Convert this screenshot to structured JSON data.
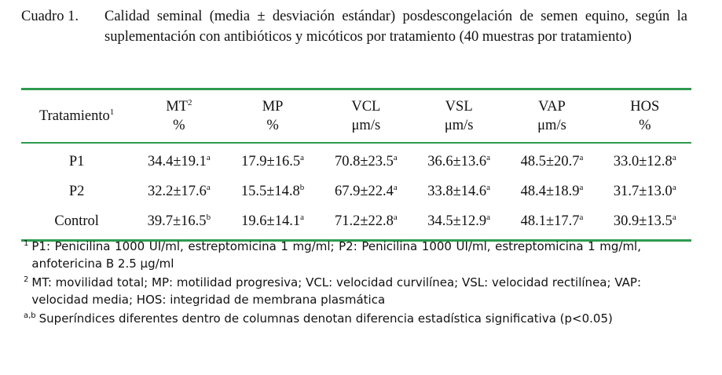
{
  "caption": {
    "label": "Cuadro 1.",
    "text": "Calidad seminal (media ± desviación estándar) posdescongelación de semen equino, según la suplementación con antibióticos y micóticos por tratamiento (40 muestras por tratamiento)"
  },
  "table": {
    "header": [
      {
        "label": "Tratamiento",
        "sup": "1"
      },
      {
        "label": "MT",
        "sup": "2",
        "unit": "%"
      },
      {
        "label": "MP",
        "unit": "%"
      },
      {
        "label": "VCL",
        "unit": "μm/s"
      },
      {
        "label": "VSL",
        "unit": "μm/s"
      },
      {
        "label": "VAP",
        "unit": "μm/s"
      },
      {
        "label": "HOS",
        "unit": "%"
      }
    ],
    "rows": [
      {
        "treatment": "P1",
        "cells": [
          {
            "value": "34.4±19.1",
            "sup": "a"
          },
          {
            "value": "17.9±16.5",
            "sup": "a"
          },
          {
            "value": "70.8±23.5",
            "sup": "a"
          },
          {
            "value": "36.6±13.6",
            "sup": "a"
          },
          {
            "value": "48.5±20.7",
            "sup": "a"
          },
          {
            "value": "33.0±12.8",
            "sup": "a"
          }
        ]
      },
      {
        "treatment": "P2",
        "cells": [
          {
            "value": "32.2±17.6",
            "sup": "a"
          },
          {
            "value": "15.5±14.8",
            "sup": "b"
          },
          {
            "value": "67.9±22.4",
            "sup": "a"
          },
          {
            "value": "33.8±14.6",
            "sup": "a"
          },
          {
            "value": "48.4±18.9",
            "sup": "a"
          },
          {
            "value": "31.7±13.0",
            "sup": "a"
          }
        ]
      },
      {
        "treatment": "Control",
        "cells": [
          {
            "value": "39.7±16.5",
            "sup": "b"
          },
          {
            "value": "19.6±14.1",
            "sup": "a"
          },
          {
            "value": "71.2±22.8",
            "sup": "a"
          },
          {
            "value": "34.5±12.9",
            "sup": "a"
          },
          {
            "value": "48.1±17.7",
            "sup": "a"
          },
          {
            "value": "30.9±13.5",
            "sup": "a"
          }
        ]
      }
    ]
  },
  "footnotes": [
    {
      "mark": "1",
      "text": "P1: Penicilina 1000 UI/ml, estreptomicina 1 mg/ml; P2: Penicilina 1000 UI/ml, estreptomicina 1 mg/ml, anfotericina B 2.5 μg/ml"
    },
    {
      "mark": "2",
      "text": "MT: movilidad total; MP: motilidad progresiva; VCL: velocidad curvilínea; VSL: velocidad rectilínea; VAP: velocidad media; HOS: integridad de membrana plasmática"
    },
    {
      "mark": "a,b",
      "text": "Superíndices diferentes dentro de columnas denotan diferencia estadística significativa (p<0.05)"
    }
  ]
}
